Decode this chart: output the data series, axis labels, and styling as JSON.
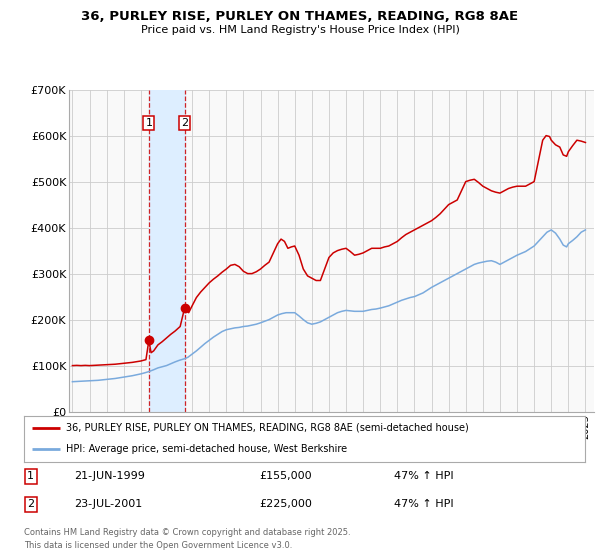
{
  "title": "36, PURLEY RISE, PURLEY ON THAMES, READING, RG8 8AE",
  "subtitle": "Price paid vs. HM Land Registry's House Price Index (HPI)",
  "background_color": "#ffffff",
  "plot_bg_color": "#f9f9f9",
  "grid_color": "#cccccc",
  "red_line_color": "#cc0000",
  "blue_line_color": "#7aaadd",
  "shade_color": "#ddeeff",
  "ylim": [
    0,
    700000
  ],
  "yticks": [
    0,
    100000,
    200000,
    300000,
    400000,
    500000,
    600000,
    700000
  ],
  "ytick_labels": [
    "£0",
    "£100K",
    "£200K",
    "£300K",
    "£400K",
    "£500K",
    "£600K",
    "£700K"
  ],
  "xlim_start": 1994.8,
  "xlim_end": 2025.5,
  "sale1_x": 1999.47,
  "sale1_y": 155000,
  "sale2_x": 2001.56,
  "sale2_y": 225000,
  "legend_line1": "36, PURLEY RISE, PURLEY ON THAMES, READING, RG8 8AE (semi-detached house)",
  "legend_line2": "HPI: Average price, semi-detached house, West Berkshire",
  "table_row1": [
    "1",
    "21-JUN-1999",
    "£155,000",
    "47% ↑ HPI"
  ],
  "table_row2": [
    "2",
    "23-JUL-2001",
    "£225,000",
    "47% ↑ HPI"
  ],
  "footer": "Contains HM Land Registry data © Crown copyright and database right 2025.\nThis data is licensed under the Open Government Licence v3.0.",
  "red_hpi_data": [
    [
      1995.0,
      100000
    ],
    [
      1995.25,
      100500
    ],
    [
      1995.5,
      100000
    ],
    [
      1995.75,
      100500
    ],
    [
      1996.0,
      100000
    ],
    [
      1996.25,
      100500
    ],
    [
      1996.5,
      101000
    ],
    [
      1996.75,
      101500
    ],
    [
      1997.0,
      102000
    ],
    [
      1997.25,
      102500
    ],
    [
      1997.5,
      103000
    ],
    [
      1997.75,
      104000
    ],
    [
      1998.0,
      105000
    ],
    [
      1998.25,
      106000
    ],
    [
      1998.5,
      107000
    ],
    [
      1998.75,
      108500
    ],
    [
      1999.0,
      110000
    ],
    [
      1999.2,
      112000
    ],
    [
      1999.3,
      113000
    ],
    [
      1999.47,
      155000
    ],
    [
      1999.6,
      128000
    ],
    [
      1999.75,
      132000
    ],
    [
      2000.0,
      145000
    ],
    [
      2000.25,
      152000
    ],
    [
      2000.5,
      160000
    ],
    [
      2000.75,
      168000
    ],
    [
      2001.0,
      175000
    ],
    [
      2001.3,
      185000
    ],
    [
      2001.56,
      225000
    ],
    [
      2001.8,
      215000
    ],
    [
      2002.0,
      230000
    ],
    [
      2002.25,
      248000
    ],
    [
      2002.5,
      260000
    ],
    [
      2002.75,
      270000
    ],
    [
      2003.0,
      280000
    ],
    [
      2003.25,
      288000
    ],
    [
      2003.5,
      295000
    ],
    [
      2003.75,
      303000
    ],
    [
      2004.0,
      310000
    ],
    [
      2004.25,
      318000
    ],
    [
      2004.5,
      320000
    ],
    [
      2004.75,
      315000
    ],
    [
      2005.0,
      305000
    ],
    [
      2005.25,
      300000
    ],
    [
      2005.5,
      300000
    ],
    [
      2005.75,
      304000
    ],
    [
      2006.0,
      310000
    ],
    [
      2006.25,
      318000
    ],
    [
      2006.5,
      325000
    ],
    [
      2006.75,
      345000
    ],
    [
      2007.0,
      365000
    ],
    [
      2007.2,
      375000
    ],
    [
      2007.4,
      370000
    ],
    [
      2007.6,
      355000
    ],
    [
      2007.8,
      358000
    ],
    [
      2008.0,
      360000
    ],
    [
      2008.25,
      340000
    ],
    [
      2008.5,
      310000
    ],
    [
      2008.75,
      295000
    ],
    [
      2009.0,
      290000
    ],
    [
      2009.25,
      285000
    ],
    [
      2009.5,
      285000
    ],
    [
      2009.75,
      310000
    ],
    [
      2010.0,
      335000
    ],
    [
      2010.25,
      345000
    ],
    [
      2010.5,
      350000
    ],
    [
      2010.75,
      353000
    ],
    [
      2011.0,
      355000
    ],
    [
      2011.25,
      348000
    ],
    [
      2011.5,
      340000
    ],
    [
      2011.75,
      342000
    ],
    [
      2012.0,
      345000
    ],
    [
      2012.25,
      350000
    ],
    [
      2012.5,
      355000
    ],
    [
      2012.75,
      355000
    ],
    [
      2013.0,
      355000
    ],
    [
      2013.25,
      358000
    ],
    [
      2013.5,
      360000
    ],
    [
      2013.75,
      365000
    ],
    [
      2014.0,
      370000
    ],
    [
      2014.25,
      378000
    ],
    [
      2014.5,
      385000
    ],
    [
      2014.75,
      390000
    ],
    [
      2015.0,
      395000
    ],
    [
      2015.25,
      400000
    ],
    [
      2015.5,
      405000
    ],
    [
      2015.75,
      410000
    ],
    [
      2016.0,
      415000
    ],
    [
      2016.25,
      422000
    ],
    [
      2016.5,
      430000
    ],
    [
      2016.75,
      440000
    ],
    [
      2017.0,
      450000
    ],
    [
      2017.25,
      455000
    ],
    [
      2017.5,
      460000
    ],
    [
      2017.75,
      480000
    ],
    [
      2018.0,
      500000
    ],
    [
      2018.25,
      503000
    ],
    [
      2018.5,
      505000
    ],
    [
      2018.75,
      498000
    ],
    [
      2019.0,
      490000
    ],
    [
      2019.25,
      485000
    ],
    [
      2019.5,
      480000
    ],
    [
      2019.75,
      477000
    ],
    [
      2020.0,
      475000
    ],
    [
      2020.25,
      480000
    ],
    [
      2020.5,
      485000
    ],
    [
      2020.75,
      488000
    ],
    [
      2021.0,
      490000
    ],
    [
      2021.25,
      490000
    ],
    [
      2021.5,
      490000
    ],
    [
      2021.75,
      495000
    ],
    [
      2022.0,
      500000
    ],
    [
      2022.25,
      545000
    ],
    [
      2022.5,
      590000
    ],
    [
      2022.7,
      600000
    ],
    [
      2022.9,
      598000
    ],
    [
      2023.0,
      590000
    ],
    [
      2023.25,
      580000
    ],
    [
      2023.5,
      575000
    ],
    [
      2023.7,
      558000
    ],
    [
      2023.9,
      555000
    ],
    [
      2024.0,
      565000
    ],
    [
      2024.25,
      578000
    ],
    [
      2024.5,
      590000
    ],
    [
      2024.75,
      588000
    ],
    [
      2025.0,
      585000
    ]
  ],
  "blue_hpi_data": [
    [
      1995.0,
      65000
    ],
    [
      1995.25,
      65500
    ],
    [
      1995.5,
      66000
    ],
    [
      1995.75,
      66500
    ],
    [
      1996.0,
      67000
    ],
    [
      1996.25,
      67500
    ],
    [
      1996.5,
      68000
    ],
    [
      1996.75,
      69000
    ],
    [
      1997.0,
      70000
    ],
    [
      1997.25,
      71000
    ],
    [
      1997.5,
      72000
    ],
    [
      1997.75,
      73500
    ],
    [
      1998.0,
      75000
    ],
    [
      1998.25,
      76500
    ],
    [
      1998.5,
      78000
    ],
    [
      1998.75,
      80000
    ],
    [
      1999.0,
      82000
    ],
    [
      1999.25,
      84500
    ],
    [
      1999.47,
      87000
    ],
    [
      1999.75,
      91000
    ],
    [
      2000.0,
      95000
    ],
    [
      2000.25,
      97500
    ],
    [
      2000.5,
      100000
    ],
    [
      2000.75,
      104000
    ],
    [
      2001.0,
      108000
    ],
    [
      2001.25,
      111500
    ],
    [
      2001.56,
      115000
    ],
    [
      2001.75,
      118000
    ],
    [
      2002.0,
      125000
    ],
    [
      2002.25,
      132000
    ],
    [
      2002.5,
      140000
    ],
    [
      2002.75,
      148000
    ],
    [
      2003.0,
      155000
    ],
    [
      2003.25,
      162000
    ],
    [
      2003.5,
      168000
    ],
    [
      2003.75,
      174000
    ],
    [
      2004.0,
      178000
    ],
    [
      2004.25,
      180000
    ],
    [
      2004.5,
      182000
    ],
    [
      2004.75,
      183000
    ],
    [
      2005.0,
      185000
    ],
    [
      2005.25,
      186000
    ],
    [
      2005.5,
      188000
    ],
    [
      2005.75,
      190000
    ],
    [
      2006.0,
      193000
    ],
    [
      2006.25,
      196500
    ],
    [
      2006.5,
      200000
    ],
    [
      2006.75,
      205000
    ],
    [
      2007.0,
      210000
    ],
    [
      2007.25,
      213000
    ],
    [
      2007.5,
      215000
    ],
    [
      2007.75,
      215000
    ],
    [
      2008.0,
      215000
    ],
    [
      2008.25,
      208000
    ],
    [
      2008.5,
      200000
    ],
    [
      2008.75,
      193000
    ],
    [
      2009.0,
      190000
    ],
    [
      2009.25,
      192000
    ],
    [
      2009.5,
      195000
    ],
    [
      2009.75,
      200000
    ],
    [
      2010.0,
      205000
    ],
    [
      2010.25,
      210000
    ],
    [
      2010.5,
      215000
    ],
    [
      2010.75,
      218000
    ],
    [
      2011.0,
      220000
    ],
    [
      2011.25,
      219000
    ],
    [
      2011.5,
      218000
    ],
    [
      2011.75,
      218000
    ],
    [
      2012.0,
      218000
    ],
    [
      2012.25,
      220000
    ],
    [
      2012.5,
      222000
    ],
    [
      2012.75,
      223000
    ],
    [
      2013.0,
      225000
    ],
    [
      2013.25,
      227500
    ],
    [
      2013.5,
      230000
    ],
    [
      2013.75,
      234000
    ],
    [
      2014.0,
      238000
    ],
    [
      2014.25,
      242000
    ],
    [
      2014.5,
      245000
    ],
    [
      2014.75,
      248000
    ],
    [
      2015.0,
      250000
    ],
    [
      2015.25,
      254000
    ],
    [
      2015.5,
      258000
    ],
    [
      2015.75,
      264000
    ],
    [
      2016.0,
      270000
    ],
    [
      2016.25,
      275000
    ],
    [
      2016.5,
      280000
    ],
    [
      2016.75,
      285000
    ],
    [
      2017.0,
      290000
    ],
    [
      2017.25,
      295000
    ],
    [
      2017.5,
      300000
    ],
    [
      2017.75,
      305000
    ],
    [
      2018.0,
      310000
    ],
    [
      2018.25,
      315000
    ],
    [
      2018.5,
      320000
    ],
    [
      2018.75,
      323000
    ],
    [
      2019.0,
      325000
    ],
    [
      2019.25,
      327000
    ],
    [
      2019.5,
      328000
    ],
    [
      2019.75,
      325000
    ],
    [
      2020.0,
      320000
    ],
    [
      2020.25,
      325000
    ],
    [
      2020.5,
      330000
    ],
    [
      2020.75,
      335000
    ],
    [
      2021.0,
      340000
    ],
    [
      2021.25,
      344000
    ],
    [
      2021.5,
      348000
    ],
    [
      2021.75,
      354000
    ],
    [
      2022.0,
      360000
    ],
    [
      2022.25,
      370000
    ],
    [
      2022.5,
      380000
    ],
    [
      2022.75,
      390000
    ],
    [
      2023.0,
      395000
    ],
    [
      2023.25,
      388000
    ],
    [
      2023.5,
      375000
    ],
    [
      2023.7,
      362000
    ],
    [
      2023.9,
      358000
    ],
    [
      2024.0,
      365000
    ],
    [
      2024.25,
      372000
    ],
    [
      2024.5,
      380000
    ],
    [
      2024.75,
      390000
    ],
    [
      2025.0,
      395000
    ]
  ]
}
